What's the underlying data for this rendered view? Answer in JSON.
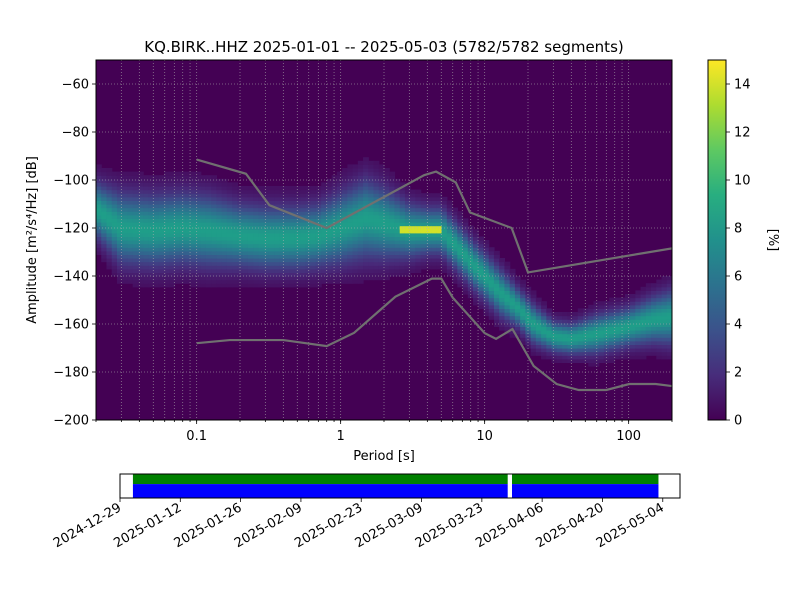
{
  "chart_data": {
    "type": "heatmap",
    "title": "KQ.BIRK..HHZ   2025-01-01 -- 2025-05-03  (5782/5782 segments)",
    "xlabel": "Period [s]",
    "ylabel": "Amplitude [m²/s⁴/Hz] [dB]",
    "xscale": "log",
    "xlim": [
      0.02,
      200
    ],
    "ylim": [
      -200,
      -50
    ],
    "x_ticks": [
      {
        "value": 0.1,
        "label": "0.1"
      },
      {
        "value": 1,
        "label": "1"
      },
      {
        "value": 10,
        "label": "10"
      },
      {
        "value": 100,
        "label": "100"
      }
    ],
    "y_ticks": [
      {
        "value": -60,
        "label": "−60"
      },
      {
        "value": -80,
        "label": "−80"
      },
      {
        "value": -100,
        "label": "−100"
      },
      {
        "value": -120,
        "label": "−120"
      },
      {
        "value": -140,
        "label": "−140"
      },
      {
        "value": -160,
        "label": "−160"
      },
      {
        "value": -180,
        "label": "−180"
      },
      {
        "value": -200,
        "label": "−200"
      }
    ],
    "grid": true,
    "colorbar": {
      "label": "[%]",
      "range": [
        0,
        15
      ],
      "colormap": "viridis",
      "ticks": [
        "0",
        "2",
        "4",
        "6",
        "8",
        "10",
        "12",
        "14"
      ]
    },
    "density_ridge": {
      "period": [
        0.02,
        0.03,
        0.05,
        0.08,
        0.12,
        0.2,
        0.3,
        0.5,
        0.7,
        1.0,
        1.5,
        2.0,
        3.0,
        4.0,
        5.0,
        6.5,
        8.0,
        10,
        13,
        17,
        22,
        30,
        40,
        60,
        100,
        150,
        200
      ],
      "center_db": [
        -112,
        -120,
        -121,
        -120,
        -121,
        -123,
        -124,
        -124,
        -123,
        -120,
        -116,
        -118,
        -121,
        -121,
        -121,
        -128,
        -134,
        -140,
        -147,
        -153,
        -160,
        -165,
        -166,
        -164,
        -161,
        -158,
        -157
      ],
      "width_db": [
        7,
        9,
        9,
        9,
        9,
        8,
        8,
        8,
        8,
        9,
        10,
        9,
        7,
        6,
        6,
        6,
        6,
        6,
        6,
        5,
        5,
        4,
        4,
        5,
        5,
        6,
        7
      ],
      "peak_percent": 8
    },
    "hotspot": {
      "period_range": [
        2.5,
        5.0
      ],
      "amplitude_db": -121,
      "percent": 14
    },
    "nhnm": {
      "period": [
        0.1,
        0.22,
        0.32,
        0.8,
        3.8,
        4.6,
        6.3,
        7.9,
        15.4,
        20,
        354.8
      ],
      "db": [
        -91.5,
        -97.4,
        -110.5,
        -120.0,
        -98.0,
        -96.5,
        -101.0,
        -113.5,
        -120.0,
        -138.5,
        -126.0
      ]
    },
    "nlnm": {
      "period": [
        0.1,
        0.17,
        0.4,
        0.8,
        1.24,
        2.4,
        4.3,
        5.0,
        6.0,
        10.0,
        12.0,
        15.6,
        21.9,
        31.6,
        45.0,
        70.0,
        101.0,
        154.0,
        328.0
      ],
      "db": [
        -168.0,
        -166.7,
        -166.7,
        -169.2,
        -163.7,
        -148.6,
        -141.1,
        -141.1,
        -149.0,
        -163.8,
        -166.2,
        -162.1,
        -177.5,
        -185.0,
        -187.5,
        -187.5,
        -185.0,
        -185.0,
        -187.5
      ]
    },
    "timeline": {
      "x_ticks": [
        "2024-12-29",
        "2025-01-12",
        "2025-01-26",
        "2025-02-09",
        "2025-02-23",
        "2025-03-09",
        "2025-03-23",
        "2025-04-06",
        "2025-04-20",
        "2025-05-04"
      ],
      "range": [
        "2024-12-29",
        "2025-05-08"
      ],
      "coverage": [
        {
          "start": "2025-01-01",
          "end": "2025-03-29"
        },
        {
          "start": "2025-03-30",
          "end": "2025-05-03"
        }
      ],
      "colors": {
        "data": "#0000ff",
        "used": "#008000"
      }
    }
  }
}
